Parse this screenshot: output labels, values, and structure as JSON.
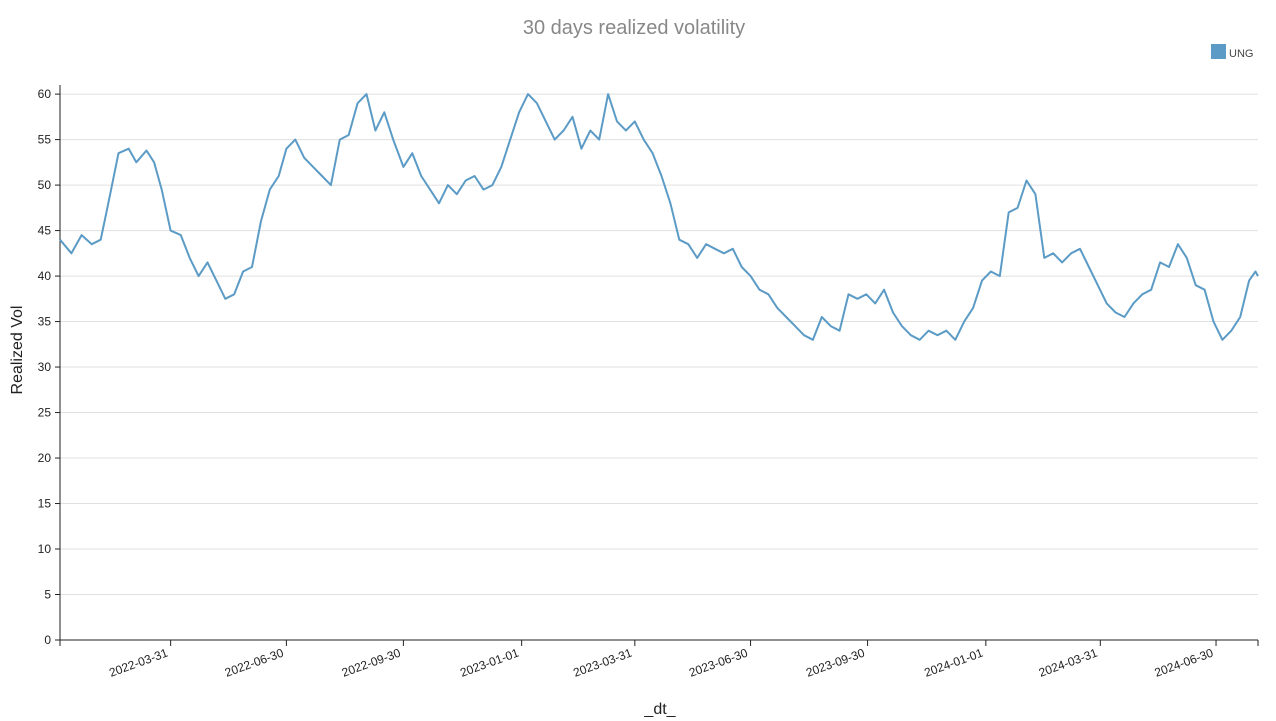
{
  "chart_data": {
    "type": "line",
    "title": "30 days realized volatility",
    "xlabel": "_dt_",
    "ylabel": "Realized Vol",
    "ylim": [
      0,
      61
    ],
    "yticks": [
      0,
      5,
      10,
      15,
      20,
      25,
      30,
      35,
      40,
      45,
      50,
      55,
      60
    ],
    "xlim": [
      "2022-01-03",
      "2024-08-02"
    ],
    "xticks": [
      "2022-03-31",
      "2022-06-30",
      "2022-09-30",
      "2023-01-01",
      "2023-03-31",
      "2023-06-30",
      "2023-09-30",
      "2024-01-01",
      "2024-03-31",
      "2024-06-30"
    ],
    "grid": "horizontal",
    "legend": "top-right",
    "series": [
      {
        "name": "UNG",
        "color": "#5b9bc5",
        "points": [
          [
            "2022-01-03",
            44.0
          ],
          [
            "2022-01-12",
            42.5
          ],
          [
            "2022-01-20",
            44.5
          ],
          [
            "2022-01-28",
            43.5
          ],
          [
            "2022-02-04",
            44.0
          ],
          [
            "2022-02-10",
            48.0
          ],
          [
            "2022-02-18",
            53.5
          ],
          [
            "2022-02-26",
            54.0
          ],
          [
            "2022-03-04",
            52.5
          ],
          [
            "2022-03-12",
            53.8
          ],
          [
            "2022-03-18",
            52.5
          ],
          [
            "2022-03-24",
            49.5
          ],
          [
            "2022-03-31",
            45.0
          ],
          [
            "2022-04-08",
            44.5
          ],
          [
            "2022-04-15",
            42.0
          ],
          [
            "2022-04-22",
            40.0
          ],
          [
            "2022-04-29",
            41.5
          ],
          [
            "2022-05-06",
            39.5
          ],
          [
            "2022-05-13",
            37.5
          ],
          [
            "2022-05-20",
            38.0
          ],
          [
            "2022-05-27",
            40.5
          ],
          [
            "2022-06-03",
            41.0
          ],
          [
            "2022-06-10",
            46.0
          ],
          [
            "2022-06-17",
            49.5
          ],
          [
            "2022-06-24",
            51.0
          ],
          [
            "2022-06-30",
            54.0
          ],
          [
            "2022-07-07",
            55.0
          ],
          [
            "2022-07-14",
            53.0
          ],
          [
            "2022-07-21",
            52.0
          ],
          [
            "2022-07-28",
            51.0
          ],
          [
            "2022-08-04",
            50.0
          ],
          [
            "2022-08-11",
            55.0
          ],
          [
            "2022-08-18",
            55.5
          ],
          [
            "2022-08-25",
            59.0
          ],
          [
            "2022-09-01",
            60.0
          ],
          [
            "2022-09-08",
            56.0
          ],
          [
            "2022-09-15",
            58.0
          ],
          [
            "2022-09-22",
            55.0
          ],
          [
            "2022-09-30",
            52.0
          ],
          [
            "2022-10-07",
            53.5
          ],
          [
            "2022-10-14",
            51.0
          ],
          [
            "2022-10-21",
            49.5
          ],
          [
            "2022-10-28",
            48.0
          ],
          [
            "2022-11-04",
            50.0
          ],
          [
            "2022-11-11",
            49.0
          ],
          [
            "2022-11-18",
            50.5
          ],
          [
            "2022-11-25",
            51.0
          ],
          [
            "2022-12-02",
            49.5
          ],
          [
            "2022-12-09",
            50.0
          ],
          [
            "2022-12-16",
            52.0
          ],
          [
            "2022-12-23",
            55.0
          ],
          [
            "2022-12-30",
            58.0
          ],
          [
            "2023-01-06",
            60.0
          ],
          [
            "2023-01-13",
            59.0
          ],
          [
            "2023-01-20",
            57.0
          ],
          [
            "2023-01-27",
            55.0
          ],
          [
            "2023-02-03",
            56.0
          ],
          [
            "2023-02-10",
            57.5
          ],
          [
            "2023-02-17",
            54.0
          ],
          [
            "2023-02-24",
            56.0
          ],
          [
            "2023-03-03",
            55.0
          ],
          [
            "2023-03-10",
            60.0
          ],
          [
            "2023-03-17",
            57.0
          ],
          [
            "2023-03-24",
            56.0
          ],
          [
            "2023-03-31",
            57.0
          ],
          [
            "2023-04-07",
            55.0
          ],
          [
            "2023-04-14",
            53.5
          ],
          [
            "2023-04-21",
            51.0
          ],
          [
            "2023-04-28",
            48.0
          ],
          [
            "2023-05-05",
            44.0
          ],
          [
            "2023-05-12",
            43.5
          ],
          [
            "2023-05-19",
            42.0
          ],
          [
            "2023-05-26",
            43.5
          ],
          [
            "2023-06-02",
            43.0
          ],
          [
            "2023-06-09",
            42.5
          ],
          [
            "2023-06-16",
            43.0
          ],
          [
            "2023-06-23",
            41.0
          ],
          [
            "2023-06-30",
            40.0
          ],
          [
            "2023-07-07",
            38.5
          ],
          [
            "2023-07-14",
            38.0
          ],
          [
            "2023-07-21",
            36.5
          ],
          [
            "2023-07-28",
            35.5
          ],
          [
            "2023-08-04",
            34.5
          ],
          [
            "2023-08-11",
            33.5
          ],
          [
            "2023-08-18",
            33.0
          ],
          [
            "2023-08-25",
            35.5
          ],
          [
            "2023-09-01",
            34.5
          ],
          [
            "2023-09-08",
            34.0
          ],
          [
            "2023-09-15",
            38.0
          ],
          [
            "2023-09-22",
            37.5
          ],
          [
            "2023-09-29",
            38.0
          ],
          [
            "2023-10-06",
            37.0
          ],
          [
            "2023-10-13",
            38.5
          ],
          [
            "2023-10-20",
            36.0
          ],
          [
            "2023-10-27",
            34.5
          ],
          [
            "2023-11-03",
            33.5
          ],
          [
            "2023-11-10",
            33.0
          ],
          [
            "2023-11-17",
            34.0
          ],
          [
            "2023-11-24",
            33.5
          ],
          [
            "2023-12-01",
            34.0
          ],
          [
            "2023-12-08",
            33.0
          ],
          [
            "2023-12-15",
            35.0
          ],
          [
            "2023-12-22",
            36.5
          ],
          [
            "2023-12-29",
            39.5
          ],
          [
            "2024-01-05",
            40.5
          ],
          [
            "2024-01-12",
            40.0
          ],
          [
            "2024-01-19",
            47.0
          ],
          [
            "2024-01-26",
            47.5
          ],
          [
            "2024-02-02",
            50.5
          ],
          [
            "2024-02-09",
            49.0
          ],
          [
            "2024-02-16",
            42.0
          ],
          [
            "2024-02-23",
            42.5
          ],
          [
            "2024-03-01",
            41.5
          ],
          [
            "2024-03-08",
            42.5
          ],
          [
            "2024-03-15",
            43.0
          ],
          [
            "2024-03-22",
            41.0
          ],
          [
            "2024-03-29",
            39.0
          ],
          [
            "2024-04-05",
            37.0
          ],
          [
            "2024-04-12",
            36.0
          ],
          [
            "2024-04-19",
            35.5
          ],
          [
            "2024-04-26",
            37.0
          ],
          [
            "2024-05-03",
            38.0
          ],
          [
            "2024-05-10",
            38.5
          ],
          [
            "2024-05-17",
            41.5
          ],
          [
            "2024-05-24",
            41.0
          ],
          [
            "2024-05-31",
            43.5
          ],
          [
            "2024-06-07",
            42.0
          ],
          [
            "2024-06-14",
            39.0
          ],
          [
            "2024-06-21",
            38.5
          ],
          [
            "2024-06-28",
            35.0
          ],
          [
            "2024-07-05",
            33.0
          ],
          [
            "2024-07-12",
            34.0
          ],
          [
            "2024-07-19",
            35.5
          ],
          [
            "2024-07-26",
            39.5
          ],
          [
            "2024-07-31",
            40.5
          ],
          [
            "2024-08-02",
            40.0
          ]
        ]
      }
    ]
  }
}
